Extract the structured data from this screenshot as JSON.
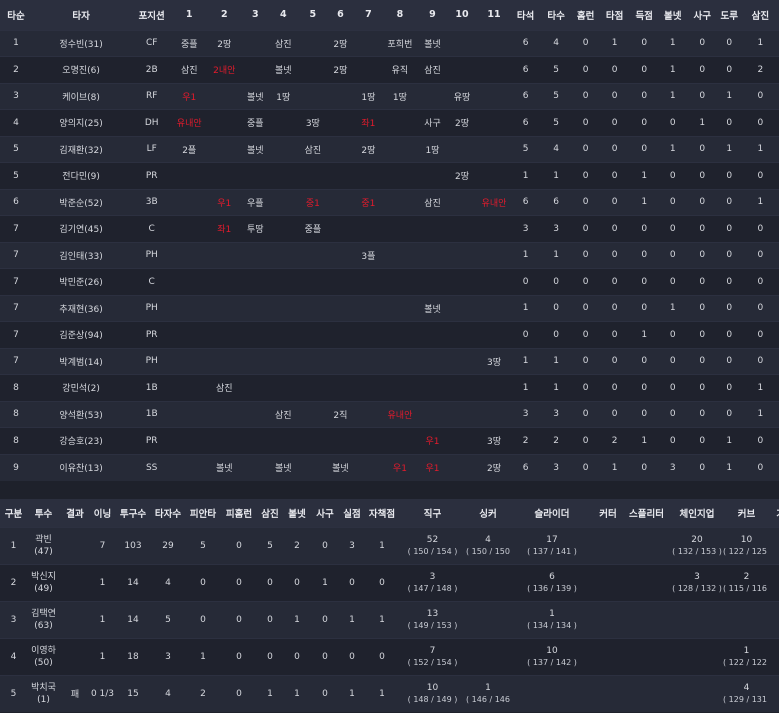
{
  "batting": {
    "headers": [
      "타순",
      "타자",
      "포지션",
      "1",
      "2",
      "3",
      "4",
      "5",
      "6",
      "7",
      "8",
      "9",
      "10",
      "11",
      "타석",
      "타수",
      "홈런",
      "타점",
      "득점",
      "볼넷",
      "사구",
      "도루",
      "삼진"
    ],
    "rows": [
      {
        "order": "1",
        "name": "정수빈(31)",
        "pos": "CF",
        "inn": [
          "중플",
          "2땅",
          "",
          "삼진",
          "",
          "2땅",
          "",
          "포희번",
          "볼넷",
          "",
          ""
        ],
        "stats": [
          "6",
          "4",
          "0",
          "1",
          "0",
          "1",
          "0",
          "0",
          "1"
        ]
      },
      {
        "order": "2",
        "name": "오명진(6)",
        "pos": "2B",
        "inn": [
          "삼진",
          "2내안",
          "",
          "볼넷",
          "",
          "2땅",
          "",
          "유직",
          "삼진",
          "",
          ""
        ],
        "stats": [
          "6",
          "5",
          "0",
          "0",
          "0",
          "1",
          "0",
          "0",
          "2"
        ]
      },
      {
        "order": "3",
        "name": "케이브(8)",
        "pos": "RF",
        "inn": [
          "우1",
          "",
          "볼넷",
          "1땅",
          "",
          "",
          "1땅",
          "1땅",
          "",
          "유땅",
          ""
        ],
        "stats": [
          "6",
          "5",
          "0",
          "0",
          "0",
          "1",
          "0",
          "1",
          "0"
        ]
      },
      {
        "order": "4",
        "name": "양의지(25)",
        "pos": "DH",
        "inn": [
          "유내안",
          "",
          "중플",
          "",
          "3땅",
          "",
          "좌1",
          "",
          "사구",
          "2땅",
          ""
        ],
        "stats": [
          "6",
          "5",
          "0",
          "0",
          "0",
          "0",
          "1",
          "0",
          "0"
        ]
      },
      {
        "order": "5",
        "name": "김재환(32)",
        "pos": "LF",
        "inn": [
          "2플",
          "",
          "볼넷",
          "",
          "삼진",
          "",
          "2땅",
          "",
          "1땅",
          "",
          ""
        ],
        "stats": [
          "5",
          "4",
          "0",
          "0",
          "0",
          "1",
          "0",
          "1",
          "1"
        ]
      },
      {
        "order": "5",
        "name": "전다민(9)",
        "pos": "PR",
        "inn": [
          "",
          "",
          "",
          "",
          "",
          "",
          "",
          "",
          "",
          "2땅",
          ""
        ],
        "stats": [
          "1",
          "1",
          "0",
          "0",
          "1",
          "0",
          "0",
          "0",
          "0"
        ]
      },
      {
        "order": "6",
        "name": "박준순(52)",
        "pos": "3B",
        "inn": [
          "",
          "우1",
          "우플",
          "",
          "중1",
          "",
          "중1",
          "",
          "삼진",
          "",
          "유내안"
        ],
        "stats": [
          "6",
          "6",
          "0",
          "0",
          "1",
          "0",
          "0",
          "0",
          "1"
        ]
      },
      {
        "order": "7",
        "name": "김기연(45)",
        "pos": "C",
        "inn": [
          "",
          "좌1",
          "투땅",
          "",
          "중플",
          "",
          "",
          "",
          "",
          "",
          ""
        ],
        "stats": [
          "3",
          "3",
          "0",
          "0",
          "0",
          "0",
          "0",
          "0",
          "0"
        ]
      },
      {
        "order": "7",
        "name": "김인태(33)",
        "pos": "PH",
        "inn": [
          "",
          "",
          "",
          "",
          "",
          "",
          "3플",
          "",
          "",
          "",
          ""
        ],
        "stats": [
          "1",
          "1",
          "0",
          "0",
          "0",
          "0",
          "0",
          "0",
          "0"
        ]
      },
      {
        "order": "7",
        "name": "박민준(26)",
        "pos": "C",
        "inn": [
          "",
          "",
          "",
          "",
          "",
          "",
          "",
          "",
          "",
          "",
          ""
        ],
        "stats": [
          "0",
          "0",
          "0",
          "0",
          "0",
          "0",
          "0",
          "0",
          "0"
        ]
      },
      {
        "order": "7",
        "name": "추재현(36)",
        "pos": "PH",
        "inn": [
          "",
          "",
          "",
          "",
          "",
          "",
          "",
          "",
          "볼넷",
          "",
          ""
        ],
        "stats": [
          "1",
          "0",
          "0",
          "0",
          "0",
          "1",
          "0",
          "0",
          "0"
        ]
      },
      {
        "order": "7",
        "name": "김준상(94)",
        "pos": "PR",
        "inn": [
          "",
          "",
          "",
          "",
          "",
          "",
          "",
          "",
          "",
          "",
          ""
        ],
        "stats": [
          "0",
          "0",
          "0",
          "0",
          "1",
          "0",
          "0",
          "0",
          "0"
        ]
      },
      {
        "order": "7",
        "name": "박계범(14)",
        "pos": "PH",
        "inn": [
          "",
          "",
          "",
          "",
          "",
          "",
          "",
          "",
          "",
          "",
          "3땅"
        ],
        "stats": [
          "1",
          "1",
          "0",
          "0",
          "0",
          "0",
          "0",
          "0",
          "0"
        ]
      },
      {
        "order": "8",
        "name": "강민석(2)",
        "pos": "1B",
        "inn": [
          "",
          "삼진",
          "",
          "",
          "",
          "",
          "",
          "",
          "",
          "",
          ""
        ],
        "stats": [
          "1",
          "1",
          "0",
          "0",
          "0",
          "0",
          "0",
          "0",
          "1"
        ]
      },
      {
        "order": "8",
        "name": "양석환(53)",
        "pos": "1B",
        "inn": [
          "",
          "",
          "",
          "삼진",
          "",
          "2직",
          "",
          "유내안",
          "",
          "",
          ""
        ],
        "stats": [
          "3",
          "3",
          "0",
          "0",
          "0",
          "0",
          "0",
          "0",
          "1"
        ]
      },
      {
        "order": "8",
        "name": "강승호(23)",
        "pos": "PR",
        "inn": [
          "",
          "",
          "",
          "",
          "",
          "",
          "",
          "",
          "우1",
          "",
          "3땅"
        ],
        "stats": [
          "2",
          "2",
          "0",
          "2",
          "1",
          "0",
          "0",
          "1",
          "0"
        ]
      },
      {
        "order": "9",
        "name": "이유찬(13)",
        "pos": "SS",
        "inn": [
          "",
          "볼넷",
          "",
          "볼넷",
          "",
          "볼넷",
          "",
          "우1",
          "우1",
          "",
          "2땅"
        ],
        "stats": [
          "6",
          "3",
          "0",
          "1",
          "0",
          "3",
          "0",
          "1",
          "0"
        ]
      }
    ],
    "red_cells": [
      "2:1",
      "3:0",
      "4:0",
      "4:6",
      "7:1",
      "7:4",
      "7:6",
      "7:10",
      "8:1",
      "15:7",
      "16:8",
      "17:7",
      "17:8"
    ]
  },
  "pitching": {
    "headers": [
      "구분",
      "투수",
      "결과",
      "이닝",
      "투구수",
      "타자수",
      "피안타",
      "피홈런",
      "삼진",
      "볼넷",
      "사구",
      "실점",
      "자책점",
      "직구",
      "싱커",
      "슬라이더",
      "커터",
      "스플리터",
      "체인지업",
      "커브",
      "기타"
    ],
    "rows": [
      {
        "no": "1",
        "name": "곽빈",
        "num": "(47)",
        "result": "",
        "inn": "7",
        "pitches": "103",
        "batters": "29",
        "hits": "5",
        "hr": "0",
        "so": "5",
        "bb": "2",
        "hbp": "0",
        "r": "3",
        "er": "1",
        "types": [
          {
            "n": "52",
            "s": "( 150 / 154 )"
          },
          {
            "n": "4",
            "s": "( 150 / 150 )"
          },
          {
            "n": "17",
            "s": "( 137 / 141 )"
          },
          {
            "n": "",
            "s": ""
          },
          {
            "n": "",
            "s": ""
          },
          {
            "n": "20",
            "s": "( 132 / 153 )"
          },
          {
            "n": "10",
            "s": "( 122 / 125 )"
          },
          {
            "n": "",
            "s": ""
          }
        ]
      },
      {
        "no": "2",
        "name": "박신지",
        "num": "(49)",
        "result": "",
        "inn": "1",
        "pitches": "14",
        "batters": "4",
        "hits": "0",
        "hr": "0",
        "so": "0",
        "bb": "0",
        "hbp": "1",
        "r": "0",
        "er": "0",
        "types": [
          {
            "n": "3",
            "s": "( 147 / 148 )"
          },
          {
            "n": "",
            "s": ""
          },
          {
            "n": "6",
            "s": "( 136 / 139 )"
          },
          {
            "n": "",
            "s": ""
          },
          {
            "n": "",
            "s": ""
          },
          {
            "n": "3",
            "s": "( 128 / 132 )"
          },
          {
            "n": "2",
            "s": "( 115 / 116 )"
          },
          {
            "n": "",
            "s": ""
          }
        ]
      },
      {
        "no": "3",
        "name": "김택연",
        "num": "(63)",
        "result": "",
        "inn": "1",
        "pitches": "14",
        "batters": "5",
        "hits": "0",
        "hr": "0",
        "so": "0",
        "bb": "1",
        "hbp": "0",
        "r": "1",
        "er": "1",
        "types": [
          {
            "n": "13",
            "s": "( 149 / 153 )"
          },
          {
            "n": "",
            "s": ""
          },
          {
            "n": "1",
            "s": "( 134 / 134 )"
          },
          {
            "n": "",
            "s": ""
          },
          {
            "n": "",
            "s": ""
          },
          {
            "n": "",
            "s": ""
          },
          {
            "n": "",
            "s": ""
          },
          {
            "n": "",
            "s": ""
          }
        ]
      },
      {
        "no": "4",
        "name": "이영하",
        "num": "(50)",
        "result": "",
        "inn": "1",
        "pitches": "18",
        "batters": "3",
        "hits": "1",
        "hr": "0",
        "so": "0",
        "bb": "0",
        "hbp": "0",
        "r": "0",
        "er": "0",
        "types": [
          {
            "n": "7",
            "s": "( 152 / 154 )"
          },
          {
            "n": "",
            "s": ""
          },
          {
            "n": "10",
            "s": "( 137 / 142 )"
          },
          {
            "n": "",
            "s": ""
          },
          {
            "n": "",
            "s": ""
          },
          {
            "n": "",
            "s": ""
          },
          {
            "n": "1",
            "s": "( 122 / 122 )"
          },
          {
            "n": "",
            "s": ""
          }
        ]
      },
      {
        "no": "5",
        "name": "박치국",
        "num": "(1)",
        "result": "패",
        "inn": "0 1/3",
        "pitches": "15",
        "batters": "4",
        "hits": "2",
        "hr": "0",
        "so": "1",
        "bb": "1",
        "hbp": "0",
        "r": "1",
        "er": "1",
        "types": [
          {
            "n": "10",
            "s": "( 148 / 149 )"
          },
          {
            "n": "1",
            "s": "( 146 / 146 )"
          },
          {
            "n": "",
            "s": ""
          },
          {
            "n": "",
            "s": ""
          },
          {
            "n": "",
            "s": ""
          },
          {
            "n": "",
            "s": ""
          },
          {
            "n": "4",
            "s": "( 129 / 131 )"
          },
          {
            "n": "",
            "s": ""
          }
        ]
      }
    ]
  }
}
